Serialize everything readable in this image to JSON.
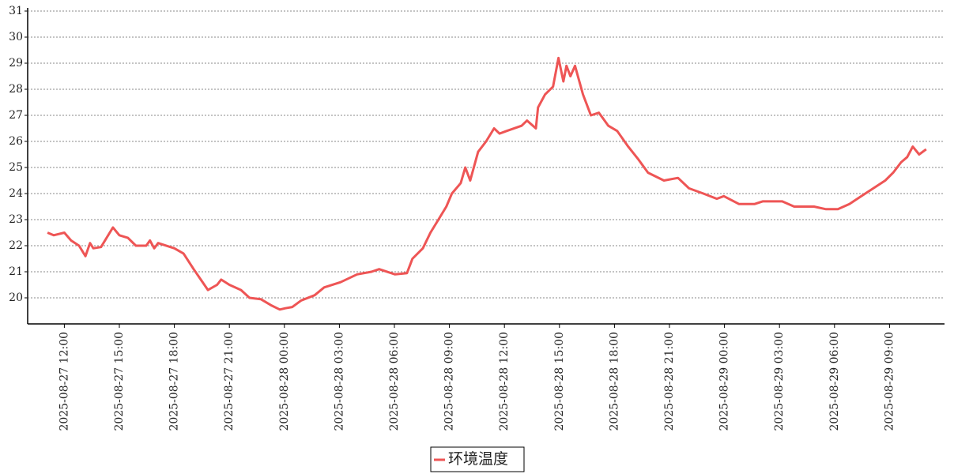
{
  "chart_data": {
    "type": "line",
    "x": [
      "2025-08-27 11:05",
      "2025-08-27 11:25",
      "2025-08-27 12:00",
      "2025-08-27 12:22",
      "2025-08-27 12:48",
      "2025-08-27 13:09",
      "2025-08-27 13:24",
      "2025-08-27 13:35",
      "2025-08-27 14:00",
      "2025-08-27 14:39",
      "2025-08-27 15:00",
      "2025-08-27 15:28",
      "2025-08-27 15:54",
      "2025-08-27 16:28",
      "2025-08-27 16:40",
      "2025-08-27 16:54",
      "2025-08-27 17:07",
      "2025-08-27 18:00",
      "2025-08-27 18:30",
      "2025-08-27 19:03",
      "2025-08-27 19:50",
      "2025-08-27 20:20",
      "2025-08-27 20:33",
      "2025-08-27 21:00",
      "2025-08-27 21:38",
      "2025-08-27 22:06",
      "2025-08-27 22:43",
      "2025-08-27 23:19",
      "2025-08-27 23:45",
      "2025-08-28 00:03",
      "2025-08-28 00:26",
      "2025-08-28 00:55",
      "2025-08-28 01:39",
      "2025-08-28 02:10",
      "2025-08-28 03:04",
      "2025-08-28 03:58",
      "2025-08-28 04:45",
      "2025-08-28 05:10",
      "2025-08-28 06:02",
      "2025-08-28 06:41",
      "2025-08-28 06:59",
      "2025-08-28 07:33",
      "2025-08-28 07:58",
      "2025-08-28 08:24",
      "2025-08-28 08:50",
      "2025-08-28 09:08",
      "2025-08-28 09:37",
      "2025-08-28 09:52",
      "2025-08-28 10:08",
      "2025-08-28 10:34",
      "2025-08-28 11:00",
      "2025-08-28 11:26",
      "2025-08-28 11:44",
      "2025-08-28 12:07",
      "2025-08-28 12:56",
      "2025-08-28 13:14",
      "2025-08-28 13:43",
      "2025-08-28 13:50",
      "2025-08-28 14:13",
      "2025-08-28 14:39",
      "2025-08-28 14:57",
      "2025-08-28 15:13",
      "2025-08-28 15:23",
      "2025-08-28 15:36",
      "2025-08-28 15:51",
      "2025-08-28 16:17",
      "2025-08-28 16:43",
      "2025-08-28 17:09",
      "2025-08-28 17:40",
      "2025-08-28 18:09",
      "2025-08-28 18:45",
      "2025-08-28 19:19",
      "2025-08-28 19:50",
      "2025-08-28 20:42",
      "2025-08-28 21:28",
      "2025-08-28 22:04",
      "2025-08-28 22:51",
      "2025-08-28 23:35",
      "2025-08-28 23:58",
      "2025-08-29 00:47",
      "2025-08-29 01:39",
      "2025-08-29 02:05",
      "2025-08-29 03:09",
      "2025-08-29 03:48",
      "2025-08-29 04:53",
      "2025-08-29 05:32",
      "2025-08-29 06:11",
      "2025-08-29 06:49",
      "2025-08-29 07:28",
      "2025-08-29 08:07",
      "2025-08-29 08:46",
      "2025-08-29 09:12",
      "2025-08-29 09:38",
      "2025-08-29 09:58",
      "2025-08-29 10:16",
      "2025-08-29 10:37",
      "2025-08-29 11:00"
    ],
    "series": [
      {
        "name": "环境温度",
        "color": "#ee5555",
        "values": [
          22.5,
          22.4,
          22.5,
          22.2,
          22.0,
          21.6,
          22.1,
          21.9,
          21.95,
          22.7,
          22.4,
          22.3,
          22.0,
          22.0,
          22.2,
          21.9,
          22.1,
          21.9,
          21.7,
          21.1,
          20.3,
          20.5,
          20.7,
          20.5,
          20.3,
          20.0,
          19.95,
          19.7,
          19.55,
          19.6,
          19.65,
          19.9,
          20.1,
          20.4,
          20.6,
          20.9,
          21.0,
          21.1,
          20.9,
          20.95,
          21.5,
          21.9,
          22.5,
          23.0,
          23.5,
          24.0,
          24.4,
          25.0,
          24.5,
          25.6,
          26.0,
          26.5,
          26.3,
          26.4,
          26.6,
          26.8,
          26.5,
          27.3,
          27.8,
          28.1,
          29.2,
          28.3,
          28.9,
          28.5,
          28.9,
          27.8,
          27.0,
          27.1,
          26.6,
          26.4,
          25.8,
          25.3,
          24.8,
          24.5,
          24.6,
          24.2,
          24.0,
          23.8,
          23.9,
          23.6,
          23.6,
          23.7,
          23.7,
          23.5,
          23.5,
          23.4,
          23.4,
          23.6,
          23.9,
          24.2,
          24.5,
          24.8,
          25.2,
          25.4,
          25.8,
          25.5,
          25.7
        ]
      }
    ],
    "xlim": [
      "2025-08-27 10:00",
      "2025-08-29 12:00"
    ],
    "xticks": [
      "2025-08-27 12:00",
      "2025-08-27 15:00",
      "2025-08-27 18:00",
      "2025-08-27 21:00",
      "2025-08-28 00:00",
      "2025-08-28 03:00",
      "2025-08-28 06:00",
      "2025-08-28 09:00",
      "2025-08-28 12:00",
      "2025-08-28 15:00",
      "2025-08-28 18:00",
      "2025-08-28 21:00",
      "2025-08-29 00:00",
      "2025-08-29 03:00",
      "2025-08-29 06:00",
      "2025-08-29 09:00"
    ],
    "ylim": [
      19,
      31
    ],
    "yticks": [
      20,
      21,
      22,
      23,
      24,
      25,
      26,
      27,
      28,
      29,
      30,
      31
    ],
    "grid": true,
    "legend": "bottom"
  }
}
